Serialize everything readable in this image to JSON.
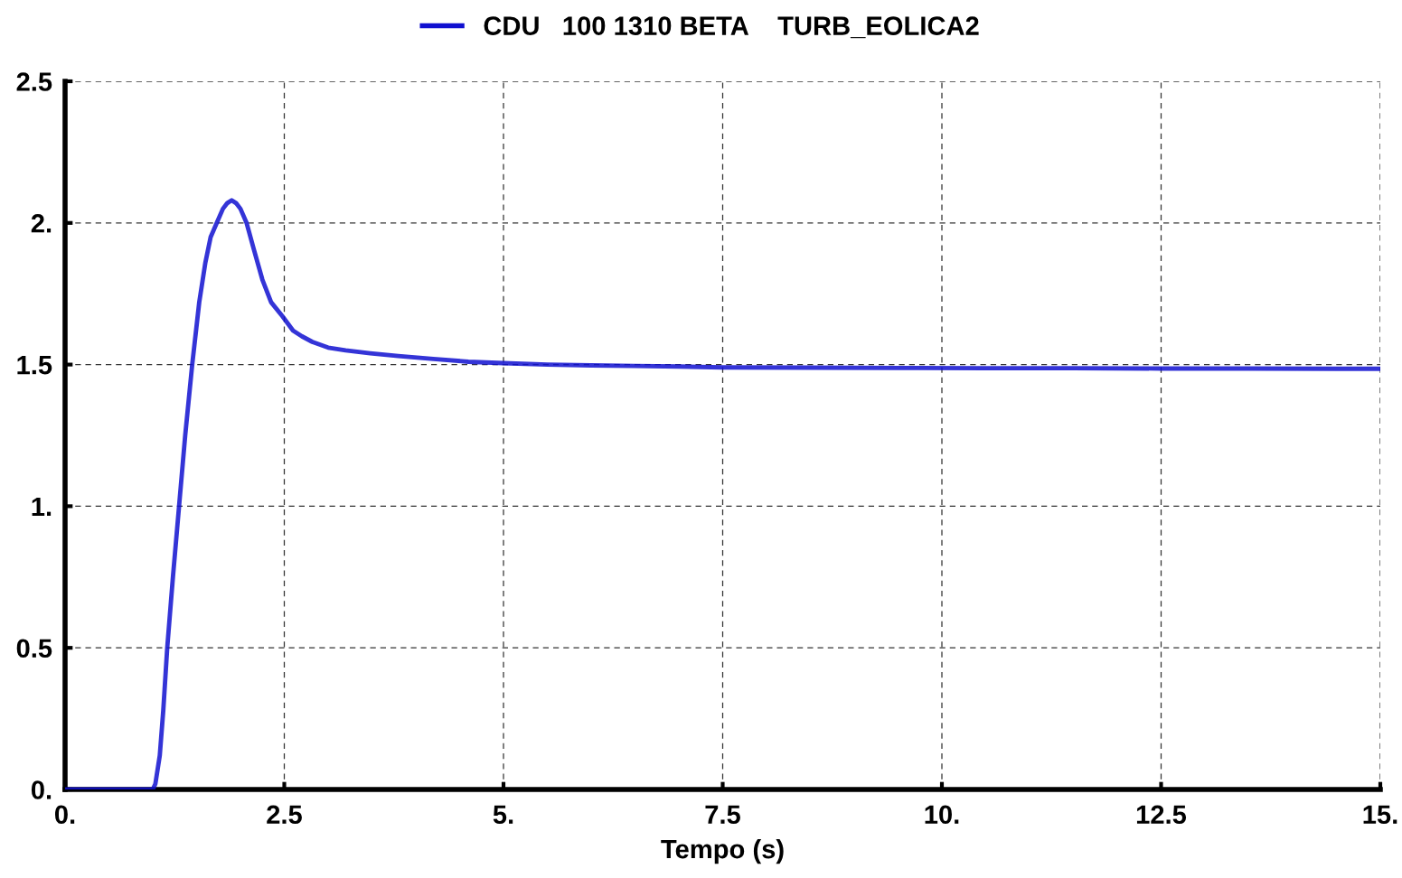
{
  "chart_data": {
    "type": "line",
    "xlabel": "Tempo (s)",
    "x": [
      0,
      0.5,
      1.0,
      1.03,
      1.08,
      1.12,
      1.165,
      1.23,
      1.3,
      1.37,
      1.45,
      1.53,
      1.6,
      1.66,
      1.73,
      1.8,
      1.85,
      1.9,
      1.95,
      2.0,
      2.07,
      2.15,
      2.25,
      2.35,
      2.48,
      2.6,
      2.7,
      2.82,
      3.0,
      3.2,
      3.48,
      3.8,
      4.2,
      4.6,
      5.0,
      5.5,
      6.0,
      6.5,
      7.0,
      7.5,
      8.5,
      9.5,
      10.5,
      11.5,
      12.5,
      13.5,
      14.5,
      15.0
    ],
    "series": [
      {
        "name": "CDU   100 1310 BETA    TURB_EOLICA2",
        "color": "#1010d0",
        "values": [
          0,
          0,
          0,
          0.02,
          0.12,
          0.28,
          0.5,
          0.75,
          1.0,
          1.25,
          1.5,
          1.72,
          1.86,
          1.95,
          2.0,
          2.05,
          2.07,
          2.08,
          2.07,
          2.05,
          2.0,
          1.91,
          1.8,
          1.72,
          1.67,
          1.62,
          1.6,
          1.58,
          1.56,
          1.55,
          1.54,
          1.53,
          1.52,
          1.51,
          1.505,
          1.5,
          1.497,
          1.495,
          1.493,
          1.49,
          1.489,
          1.488,
          1.487,
          1.487,
          1.486,
          1.486,
          1.485,
          1.485
        ]
      }
    ],
    "xlim": [
      0,
      15
    ],
    "xticks": [
      {
        "value": 0,
        "label": "0."
      },
      2.5,
      {
        "value": 5,
        "label": "5."
      },
      7.5,
      {
        "value": 10,
        "label": "10."
      },
      12.5,
      {
        "value": 15,
        "label": "15."
      }
    ],
    "ylim": [
      0,
      2.5
    ],
    "yticks": [
      {
        "value": 0,
        "label": "0."
      },
      0.5,
      {
        "value": 1,
        "label": "1."
      },
      1.5,
      {
        "value": 2,
        "label": "2."
      },
      2.5
    ],
    "grid": true,
    "legend": "top",
    "line_style": "solid",
    "marker": "none"
  }
}
